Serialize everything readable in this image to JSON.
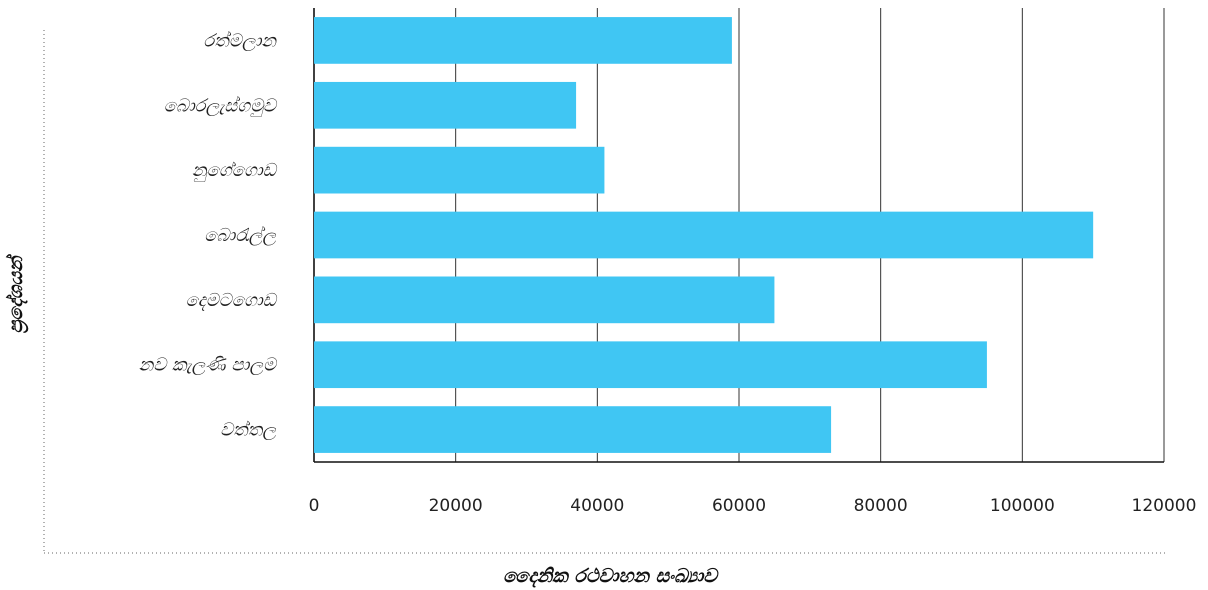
{
  "chart_data": {
    "type": "bar",
    "orientation": "horizontal",
    "categories": [
      "රත්මලාන",
      "බොරලැස්ගමුව",
      "නුගේගොඩ",
      "බොරැල්ල",
      "දෙමටගොඩ",
      "නව කැලණි පාලම",
      "වත්තල"
    ],
    "values": [
      59000,
      37000,
      41000,
      110000,
      65000,
      95000,
      73000
    ],
    "xlabel": "දෛනික රථවාහන සංඛ්‍යාව",
    "ylabel": "ප්‍රදේශයන්",
    "xlim": [
      0,
      120000
    ],
    "xticks": [
      0,
      20000,
      40000,
      60000,
      80000,
      100000,
      120000
    ],
    "xtick_labels": [
      "0",
      "20000",
      "40000",
      "60000",
      "80000",
      "100000",
      "120000"
    ],
    "grid": "vertical",
    "legend": "none",
    "bar_color": "#40C6F3",
    "grid_color": "#333333",
    "frame_style": "dotted"
  }
}
